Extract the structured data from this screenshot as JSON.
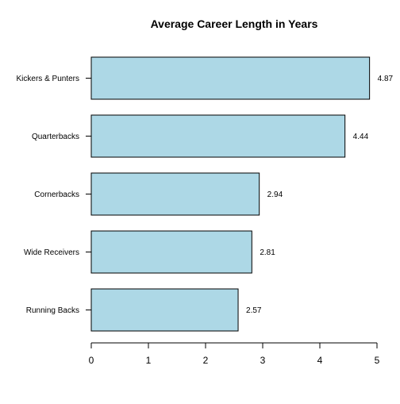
{
  "chart_data": {
    "type": "bar",
    "orientation": "horizontal",
    "title": "Average Career Length in Years",
    "xlabel": "",
    "ylabel": "",
    "categories": [
      "Running Backs",
      "Wide Receivers",
      "Cornerbacks",
      "Quarterbacks",
      "Kickers & Punters"
    ],
    "values": [
      2.57,
      2.81,
      2.94,
      4.44,
      4.87
    ],
    "value_labels": [
      "2.57",
      "2.81",
      "2.94",
      "4.44",
      "4.87"
    ],
    "xlim": [
      0,
      5
    ],
    "x_ticks": [
      0,
      1,
      2,
      3,
      4,
      5
    ],
    "x_tick_labels": [
      "0",
      "1",
      "2",
      "3",
      "4",
      "5"
    ],
    "bar_color": "#add8e6",
    "bar_edge_color": "#000000",
    "grid": false,
    "legend": "none"
  }
}
